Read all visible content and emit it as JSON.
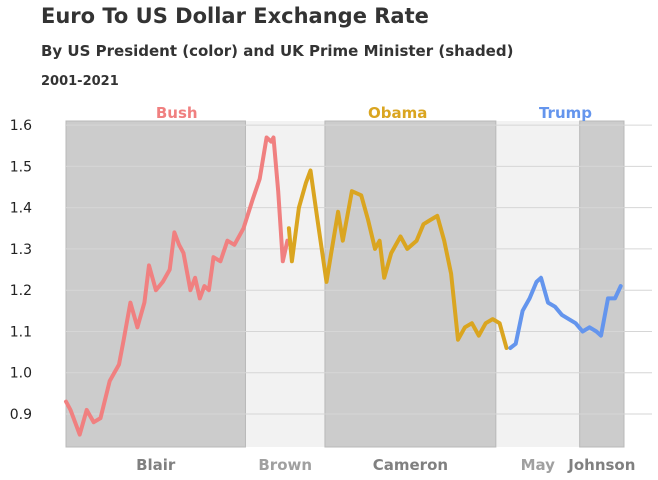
{
  "chart_data": {
    "type": "line",
    "title": "Euro To US Dollar Exchange Rate",
    "subtitle": "By US President (color) and UK Prime Minister (shaded)",
    "date_range": "2001-2021",
    "ylim": [
      0.82,
      1.61
    ],
    "y_ticks": [
      "0.9",
      "1.0",
      "1.1",
      "1.2",
      "1.3",
      "1.4",
      "1.5",
      "1.6"
    ],
    "grid": true,
    "colors": {
      "bush": "#f08080",
      "obama": "#daa520",
      "trump": "#6495ed"
    },
    "presidents": [
      {
        "name": "Bush",
        "color": "#f08080"
      },
      {
        "name": "Obama",
        "color": "#daa520"
      },
      {
        "name": "Trump",
        "color": "#6495ed"
      }
    ],
    "prime_ministers": [
      {
        "name": "Blair",
        "start": "2001-01-01",
        "end": "2007-06-27",
        "shaded": true
      },
      {
        "name": "Brown",
        "start": "2007-06-27",
        "end": "2010-05-11",
        "shaded": false
      },
      {
        "name": "Cameron",
        "start": "2010-05-11",
        "end": "2016-07-13",
        "shaded": true
      },
      {
        "name": "May",
        "start": "2016-07-13",
        "end": "2019-07-24",
        "shaded": false
      },
      {
        "name": "Johnson",
        "start": "2019-07-24",
        "end": "2021-02-28",
        "shaded": true
      }
    ],
    "series": [
      {
        "president": "Bush",
        "points": [
          [
            "2001-01-01",
            0.93
          ],
          [
            "2001-03-01",
            0.91
          ],
          [
            "2001-07-01",
            0.85
          ],
          [
            "2001-10-01",
            0.91
          ],
          [
            "2002-01-01",
            0.88
          ],
          [
            "2002-04-01",
            0.89
          ],
          [
            "2002-08-01",
            0.98
          ],
          [
            "2002-12-01",
            1.02
          ],
          [
            "2003-02-01",
            1.08
          ],
          [
            "2003-05-01",
            1.17
          ],
          [
            "2003-08-01",
            1.11
          ],
          [
            "2003-11-01",
            1.17
          ],
          [
            "2004-01-01",
            1.26
          ],
          [
            "2004-04-01",
            1.2
          ],
          [
            "2004-07-01",
            1.22
          ],
          [
            "2004-10-01",
            1.25
          ],
          [
            "2004-12-01",
            1.34
          ],
          [
            "2005-02-01",
            1.31
          ],
          [
            "2005-04-01",
            1.29
          ],
          [
            "2005-07-01",
            1.2
          ],
          [
            "2005-09-01",
            1.23
          ],
          [
            "2005-11-01",
            1.18
          ],
          [
            "2006-01-01",
            1.21
          ],
          [
            "2006-03-01",
            1.2
          ],
          [
            "2006-05-01",
            1.28
          ],
          [
            "2006-08-01",
            1.27
          ],
          [
            "2006-11-01",
            1.32
          ],
          [
            "2007-02-01",
            1.31
          ],
          [
            "2007-06-01",
            1.35
          ],
          [
            "2007-10-01",
            1.42
          ],
          [
            "2008-01-01",
            1.47
          ],
          [
            "2008-04-01",
            1.57
          ],
          [
            "2008-06-01",
            1.56
          ],
          [
            "2008-07-01",
            1.57
          ],
          [
            "2008-09-01",
            1.44
          ],
          [
            "2008-11-01",
            1.27
          ],
          [
            "2009-01-01",
            1.32
          ]
        ]
      },
      {
        "president": "Obama",
        "points": [
          [
            "2009-01-20",
            1.35
          ],
          [
            "2009-03-01",
            1.27
          ],
          [
            "2009-06-01",
            1.4
          ],
          [
            "2009-09-01",
            1.46
          ],
          [
            "2009-11-01",
            1.49
          ],
          [
            "2010-02-01",
            1.37
          ],
          [
            "2010-06-01",
            1.22
          ],
          [
            "2010-08-01",
            1.29
          ],
          [
            "2010-11-01",
            1.39
          ],
          [
            "2011-01-01",
            1.32
          ],
          [
            "2011-05-01",
            1.44
          ],
          [
            "2011-09-01",
            1.43
          ],
          [
            "2011-12-01",
            1.37
          ],
          [
            "2012-03-01",
            1.3
          ],
          [
            "2012-05-01",
            1.32
          ],
          [
            "2012-07-01",
            1.23
          ],
          [
            "2012-10-01",
            1.29
          ],
          [
            "2013-02-01",
            1.33
          ],
          [
            "2013-05-01",
            1.3
          ],
          [
            "2013-09-01",
            1.32
          ],
          [
            "2013-12-01",
            1.36
          ],
          [
            "2014-03-01",
            1.37
          ],
          [
            "2014-06-01",
            1.38
          ],
          [
            "2014-09-01",
            1.32
          ],
          [
            "2014-12-01",
            1.24
          ],
          [
            "2015-03-01",
            1.08
          ],
          [
            "2015-06-01",
            1.11
          ],
          [
            "2015-09-01",
            1.12
          ],
          [
            "2015-12-01",
            1.09
          ],
          [
            "2016-03-01",
            1.12
          ],
          [
            "2016-06-01",
            1.13
          ],
          [
            "2016-09-01",
            1.12
          ],
          [
            "2016-12-01",
            1.06
          ]
        ]
      },
      {
        "president": "Trump",
        "points": [
          [
            "2017-01-20",
            1.06
          ],
          [
            "2017-04-01",
            1.07
          ],
          [
            "2017-07-01",
            1.15
          ],
          [
            "2017-10-01",
            1.18
          ],
          [
            "2018-01-01",
            1.22
          ],
          [
            "2018-03-01",
            1.23
          ],
          [
            "2018-06-01",
            1.17
          ],
          [
            "2018-09-01",
            1.16
          ],
          [
            "2018-12-01",
            1.14
          ],
          [
            "2019-03-01",
            1.13
          ],
          [
            "2019-06-01",
            1.12
          ],
          [
            "2019-09-01",
            1.1
          ],
          [
            "2019-12-01",
            1.11
          ],
          [
            "2020-03-01",
            1.1
          ],
          [
            "2020-05-01",
            1.09
          ],
          [
            "2020-08-01",
            1.18
          ],
          [
            "2020-11-01",
            1.18
          ],
          [
            "2021-01-15",
            1.21
          ]
        ]
      }
    ]
  }
}
